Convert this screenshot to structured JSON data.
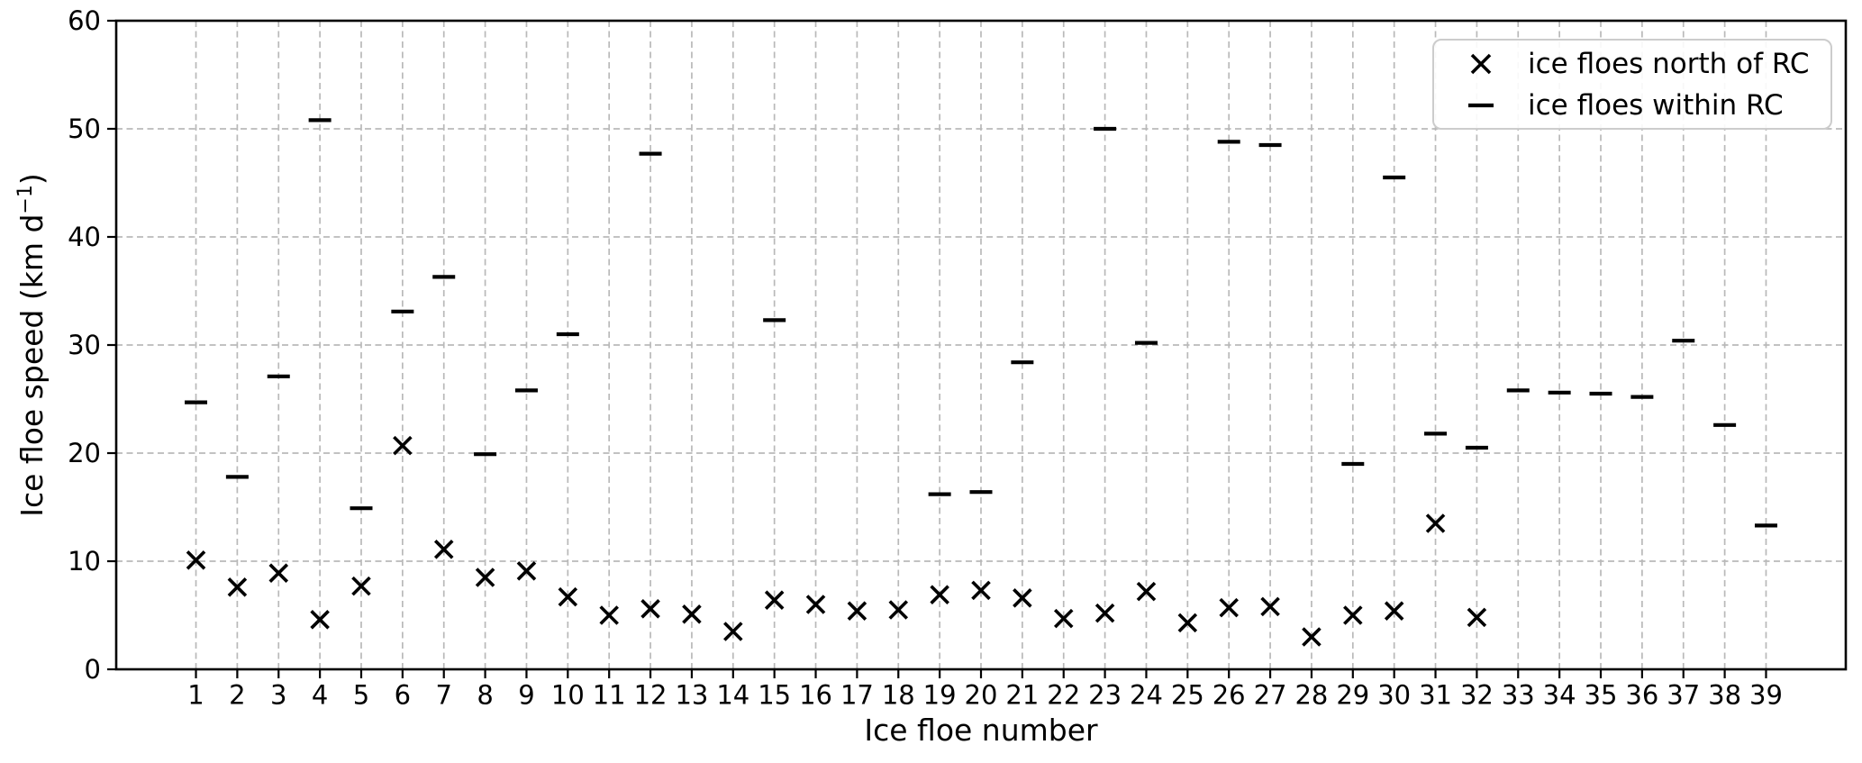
{
  "figure": {
    "xlabel": "Ice floe number",
    "ylabel_prefix": "Ice floe speed (km d",
    "ylabel_sup": "−1",
    "ylabel_suffix": ")",
    "colors": {
      "marker": "#000000",
      "grid": "#b9b9b9",
      "spine": "#000000",
      "text": "#000000",
      "legend_border": "#cccccc",
      "background": "#ffffff"
    }
  },
  "legend": {
    "items": [
      {
        "marker": "x-marker",
        "label": "ice floes north of RC"
      },
      {
        "marker": "dash-marker",
        "label": "ice floes within RC"
      }
    ]
  },
  "chart_data": {
    "type": "scatter",
    "title": "",
    "xlabel": "Ice floe number",
    "ylabel": "Ice floe speed (km d⁻¹)",
    "x": [
      1,
      2,
      3,
      4,
      5,
      6,
      7,
      8,
      9,
      10,
      11,
      12,
      13,
      14,
      15,
      16,
      17,
      18,
      19,
      20,
      21,
      22,
      23,
      24,
      25,
      26,
      27,
      28,
      29,
      30,
      31,
      32,
      33,
      34,
      35,
      36,
      37,
      38,
      39
    ],
    "series": [
      {
        "name": "ice floes north of RC",
        "marker": "x",
        "values": [
          10.1,
          7.6,
          8.9,
          4.6,
          7.7,
          20.7,
          11.1,
          8.5,
          9.1,
          6.7,
          5.0,
          5.6,
          5.1,
          3.5,
          6.4,
          6.0,
          5.4,
          5.5,
          6.9,
          7.3,
          6.6,
          4.7,
          5.2,
          7.2,
          4.3,
          5.7,
          5.8,
          3.0,
          5.0,
          5.4,
          13.5,
          4.8,
          null,
          null,
          null,
          null,
          null,
          null,
          null
        ]
      },
      {
        "name": "ice floes within RC",
        "marker": "dash",
        "values": [
          24.7,
          17.8,
          27.1,
          50.8,
          14.9,
          33.1,
          36.3,
          19.9,
          25.8,
          31.0,
          null,
          47.7,
          null,
          null,
          32.3,
          null,
          null,
          null,
          16.2,
          16.4,
          28.4,
          null,
          50.0,
          30.2,
          null,
          48.8,
          48.5,
          null,
          19.0,
          45.5,
          21.8,
          20.5,
          25.8,
          25.6,
          25.5,
          25.2,
          30.4,
          22.6,
          13.3
        ]
      }
    ],
    "xlim": [
      -0.93,
      40.93
    ],
    "ylim": [
      0,
      60
    ],
    "y_ticks": [
      0,
      10,
      20,
      30,
      40,
      50,
      60
    ],
    "grid": true,
    "grid_style": "dashed",
    "legend_position": "upper right"
  }
}
